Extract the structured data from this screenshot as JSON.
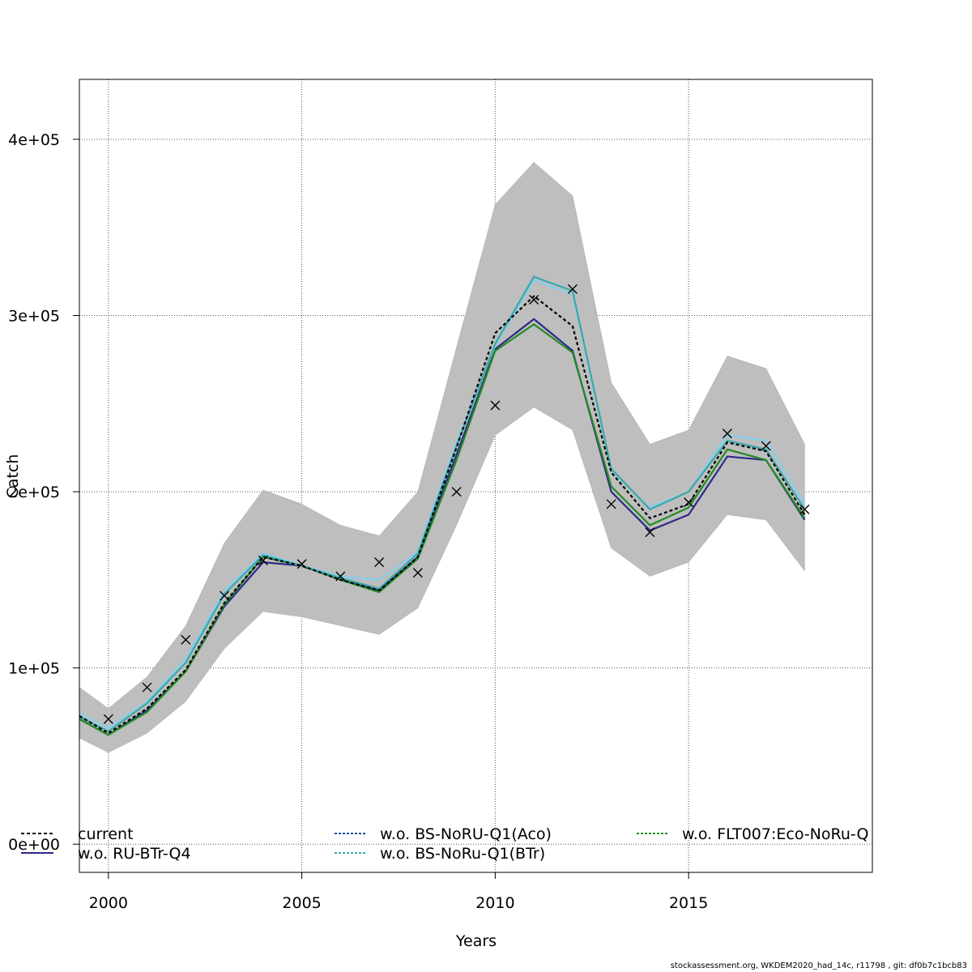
{
  "chart_data": {
    "type": "line",
    "title": "",
    "xlabel": "Years",
    "ylabel": "Catch",
    "xlim": [
      1999.25,
      2019.75
    ],
    "ylim": [
      -16000,
      434000
    ],
    "x_ticks": [
      2000,
      2005,
      2010,
      2015
    ],
    "y_ticks": [
      0,
      100000,
      200000,
      300000,
      400000
    ],
    "y_tick_labels": [
      "0e+00",
      "1e+05",
      "2e+05",
      "3e+05",
      "4e+05"
    ],
    "grid": true,
    "legend_position": "bottom-inside",
    "x": [
      1999,
      2000,
      2001,
      2002,
      2003,
      2004,
      2005,
      2006,
      2007,
      2008,
      2009,
      2010,
      2011,
      2012,
      2013,
      2014,
      2015,
      2016,
      2017,
      2018
    ],
    "band": {
      "color": "#bebebe",
      "lower": [
        63000,
        52000,
        63000,
        81000,
        111000,
        132000,
        129000,
        124000,
        119000,
        134000,
        181000,
        232000,
        248000,
        235000,
        168000,
        152000,
        160000,
        187000,
        184000,
        155000
      ],
      "upper": [
        93000,
        77000,
        95000,
        124000,
        171000,
        201000,
        193000,
        181000,
        175000,
        200000,
        282000,
        363000,
        387000,
        368000,
        262000,
        227000,
        235000,
        277000,
        270000,
        227000
      ]
    },
    "observed": {
      "marker": "x",
      "x": [
        2000,
        2001,
        2002,
        2003,
        2004,
        2005,
        2006,
        2007,
        2008,
        2009,
        2010,
        2011,
        2012,
        2013,
        2014,
        2015,
        2016,
        2017,
        2018
      ],
      "values": [
        71000,
        89000,
        116000,
        141000,
        161000,
        159000,
        152000,
        160000,
        154000,
        200000,
        249000,
        309000,
        315000,
        193000,
        177000,
        194000,
        233000,
        226000,
        190000
      ]
    },
    "series": [
      {
        "name": "current",
        "color": "#000000",
        "dash": "4,3",
        "values": [
          76000,
          63000,
          77000,
          99000,
          137000,
          163000,
          158000,
          150000,
          144000,
          163000,
          225000,
          290000,
          311000,
          294000,
          211000,
          185000,
          193000,
          228000,
          223000,
          187000
        ]
      },
      {
        "name": "w.o. BS-NoRU-Q1(Aco)",
        "color": "#87ceeb",
        "dash": "",
        "values": [
          77000,
          66000,
          81000,
          105000,
          144000,
          165000,
          158000,
          152000,
          150000,
          166000,
          228000,
          283000,
          320000,
          312000,
          212000,
          191000,
          200000,
          232000,
          229000,
          193000
        ]
      },
      {
        "name": "w.o. FLT007:Eco-NoRu-Q",
        "color": "#228b22",
        "dash": "",
        "values": [
          74000,
          62000,
          75000,
          98000,
          136000,
          163000,
          158000,
          150000,
          143000,
          162000,
          218000,
          280000,
          295000,
          279000,
          203000,
          181000,
          191000,
          224000,
          218000,
          185000
        ]
      },
      {
        "name": "w.o. RU-BTr-Q4",
        "color": "#2e2a8a",
        "dash": "",
        "values": [
          74000,
          62000,
          76000,
          98000,
          135000,
          160000,
          158000,
          150000,
          144000,
          163000,
          221000,
          281000,
          298000,
          280000,
          200000,
          178000,
          187000,
          220000,
          218000,
          184000
        ]
      },
      {
        "name": "w.o. BS-NoRu-Q1(BTr)",
        "color": "#3aa8a8",
        "dash": "",
        "values": [
          75000,
          64000,
          80000,
          103000,
          142000,
          164000,
          158000,
          151000,
          145000,
          165000,
          226000,
          284000,
          322000,
          314000,
          213000,
          190000,
          200000,
          229000,
          224000,
          190000
        ]
      }
    ],
    "legend": [
      {
        "name": "current",
        "color": "#000000",
        "dash": "4,3",
        "col": 0,
        "row": 0
      },
      {
        "name": "w.o. RU-BTr-Q4",
        "color": "#2e2a8a",
        "dash": "",
        "col": 0,
        "row": 1
      },
      {
        "name": "w.o. BS-NoRU-Q1(Aco)",
        "color": "#1f4e9e",
        "dash": "3,2",
        "col": 1,
        "row": 0
      },
      {
        "name": "w.o. BS-NoRu-Q1(BTr)",
        "color": "#3aa8a8",
        "dash": "3,2",
        "col": 1,
        "row": 1
      },
      {
        "name": "w.o. FLT007:Eco-NoRu-Q",
        "color": "#228b22",
        "dash": "3,2",
        "col": 2,
        "row": 0
      }
    ]
  },
  "footer": "stockassessment.org, WKDEM2020_had_14c, r11798 , git: df0b7c1bcb83"
}
